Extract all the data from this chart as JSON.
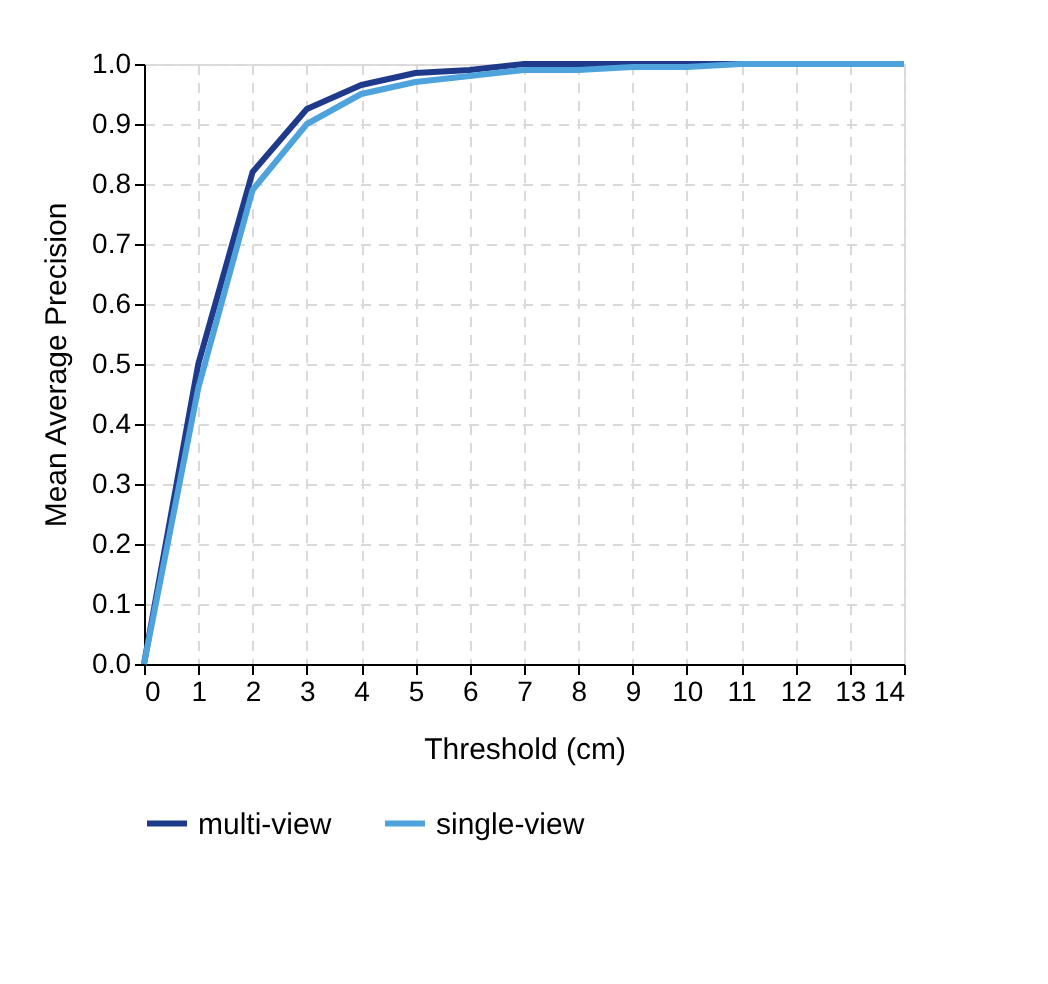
{
  "chart_data": {
    "type": "line",
    "xlabel": "Threshold (cm)",
    "ylabel": "Mean Average Precision",
    "x": [
      0,
      1,
      2,
      3,
      4,
      5,
      6,
      7,
      8,
      9,
      10,
      11,
      12,
      13,
      14
    ],
    "series": [
      {
        "name": "multi-view",
        "color": "#1f3a8a",
        "values": [
          0,
          0.5,
          0.82,
          0.925,
          0.965,
          0.985,
          0.99,
          1.0,
          1.0,
          1.0,
          1.0,
          1.0,
          1.0,
          null,
          null
        ]
      },
      {
        "name": "single-view",
        "color": "#4ea3dc",
        "values": [
          0,
          0.46,
          0.79,
          0.9,
          0.95,
          0.97,
          0.98,
          0.99,
          0.99,
          0.995,
          0.995,
          1.0,
          1.0,
          1.0,
          1.0
        ]
      }
    ],
    "xlim": [
      0,
      14
    ],
    "xticks": [
      0,
      1,
      2,
      3,
      4,
      5,
      6,
      7,
      8,
      9,
      10,
      11,
      12,
      13,
      14
    ],
    "ylim": [
      0,
      1
    ],
    "yticks": [
      {
        "value": 0,
        "label": "0.0"
      },
      {
        "value": 0.1,
        "label": "0.1"
      },
      {
        "value": 0.2,
        "label": "0.2"
      },
      {
        "value": 0.3,
        "label": "0.3"
      },
      {
        "value": 0.4,
        "label": "0.4"
      },
      {
        "value": 0.5,
        "label": "0.5"
      },
      {
        "value": 0.6,
        "label": "0.6"
      },
      {
        "value": 0.7,
        "label": "0.7"
      },
      {
        "value": 0.8,
        "label": "0.8"
      },
      {
        "value": 0.9,
        "label": "0.9"
      },
      {
        "value": 1,
        "label": "1.0"
      }
    ],
    "grid": true,
    "legend": "bottom",
    "marker": "none",
    "line_style": "solid"
  }
}
